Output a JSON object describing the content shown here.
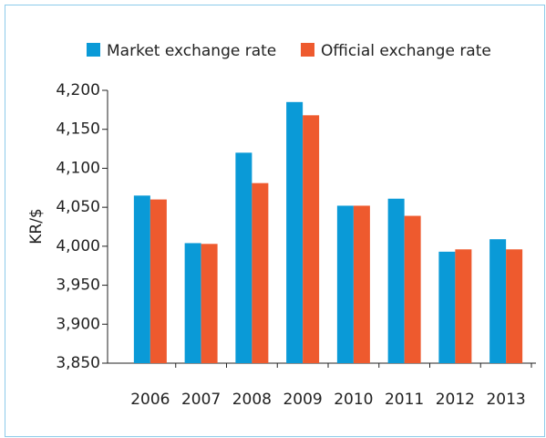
{
  "chart_data": {
    "type": "bar",
    "ylabel": "KR/$",
    "categories": [
      "2006",
      "2007",
      "2008",
      "2009",
      "2010",
      "2011",
      "2012",
      "2013"
    ],
    "series": [
      {
        "name": "Market exchange rate",
        "color": "#0a9ad7",
        "values": [
          4065,
          4004,
          4120,
          4185,
          4052,
          4061,
          3993,
          4009
        ]
      },
      {
        "name": "Official exchange rate",
        "color": "#ee5a2e",
        "values": [
          4060,
          4003,
          4081,
          4168,
          4052,
          4039,
          3996,
          3996
        ]
      }
    ],
    "ylim": [
      3850,
      4200
    ],
    "yticks": [
      {
        "value": 3850,
        "label": "3,850"
      },
      {
        "value": 3900,
        "label": "3,900"
      },
      {
        "value": 3950,
        "label": "3,950"
      },
      {
        "value": 4000,
        "label": "4,000"
      },
      {
        "value": 4050,
        "label": "4,050"
      },
      {
        "value": 4100,
        "label": "4,100"
      },
      {
        "value": 4150,
        "label": "4,150"
      },
      {
        "value": 4200,
        "label": "4,200"
      }
    ],
    "grid": false,
    "legend": "top"
  }
}
